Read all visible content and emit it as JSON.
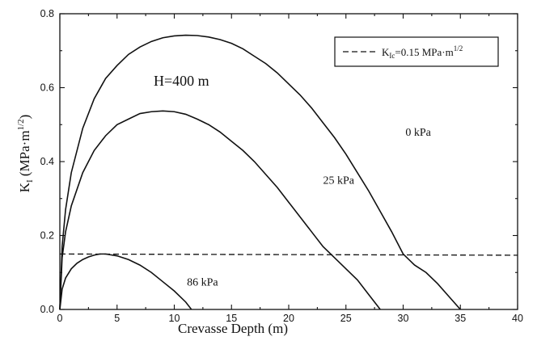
{
  "chart_data": {
    "type": "line",
    "title": "",
    "xlabel": "Crevasse Depth (m)",
    "ylabel_main": "K",
    "ylabel_sub": "I",
    "ylabel_paren": " (MPa·m",
    "ylabel_exp": "1/2",
    "ylabel_close": ")",
    "xlim": [
      0,
      40
    ],
    "ylim": [
      0,
      0.8
    ],
    "xticks": [
      0,
      5,
      10,
      15,
      20,
      25,
      30,
      35,
      40
    ],
    "yticks": [
      0.0,
      0.2,
      0.4,
      0.6,
      0.8
    ],
    "ytick_labels": [
      "0.0",
      "0.2",
      "0.4",
      "0.6",
      "0.8"
    ],
    "grid": false,
    "annotation": "H=400 m",
    "legend": {
      "position": "top-right",
      "label_main": "K",
      "label_sub": "Ic",
      "label_rest": "=0.15 MPa·m",
      "label_exp": "1/2"
    },
    "threshold": {
      "y": 0.15,
      "style": "dashed"
    },
    "series": [
      {
        "name": "0 kPa",
        "x": [
          0,
          0.2,
          0.5,
          1,
          2,
          3,
          4,
          5,
          6,
          7,
          8,
          9,
          10,
          11,
          12,
          13,
          14,
          15,
          16,
          17,
          18,
          19,
          20,
          21,
          22,
          23,
          24,
          25,
          26,
          27,
          28,
          29,
          30,
          31,
          32,
          33,
          34,
          35
        ],
        "y": [
          0,
          0.17,
          0.27,
          0.37,
          0.49,
          0.57,
          0.625,
          0.66,
          0.69,
          0.71,
          0.725,
          0.735,
          0.74,
          0.742,
          0.741,
          0.737,
          0.73,
          0.72,
          0.705,
          0.685,
          0.665,
          0.64,
          0.61,
          0.58,
          0.545,
          0.505,
          0.465,
          0.42,
          0.37,
          0.32,
          0.265,
          0.21,
          0.15,
          0.12,
          0.1,
          0.07,
          0.035,
          0
        ]
      },
      {
        "name": "25 kPa",
        "x": [
          0,
          0.2,
          0.5,
          1,
          2,
          3,
          4,
          5,
          6,
          7,
          8,
          9,
          10,
          11,
          12,
          13,
          14,
          15,
          16,
          17,
          18,
          19,
          20,
          21,
          22,
          23,
          24,
          25,
          26,
          27,
          28
        ],
        "y": [
          0,
          0.14,
          0.21,
          0.28,
          0.37,
          0.43,
          0.47,
          0.5,
          0.515,
          0.53,
          0.535,
          0.537,
          0.535,
          0.528,
          0.515,
          0.5,
          0.48,
          0.455,
          0.43,
          0.4,
          0.365,
          0.33,
          0.29,
          0.25,
          0.21,
          0.17,
          0.14,
          0.11,
          0.08,
          0.04,
          0
        ]
      },
      {
        "name": "86 kPa",
        "x": [
          0,
          0.2,
          0.5,
          1,
          1.5,
          2,
          2.5,
          3,
          3.5,
          4,
          5,
          6,
          7,
          8,
          9,
          10,
          11,
          11.5
        ],
        "y": [
          0,
          0.055,
          0.085,
          0.11,
          0.125,
          0.135,
          0.142,
          0.147,
          0.15,
          0.15,
          0.145,
          0.135,
          0.12,
          0.1,
          0.075,
          0.05,
          0.02,
          0
        ]
      }
    ],
    "series_labels": [
      {
        "text": "0 kPa",
        "x": 30.2,
        "y": 0.47
      },
      {
        "text": "25 kPa",
        "x": 23.0,
        "y": 0.34
      },
      {
        "text": "86 kPa",
        "x": 11.1,
        "y": 0.065
      }
    ]
  }
}
